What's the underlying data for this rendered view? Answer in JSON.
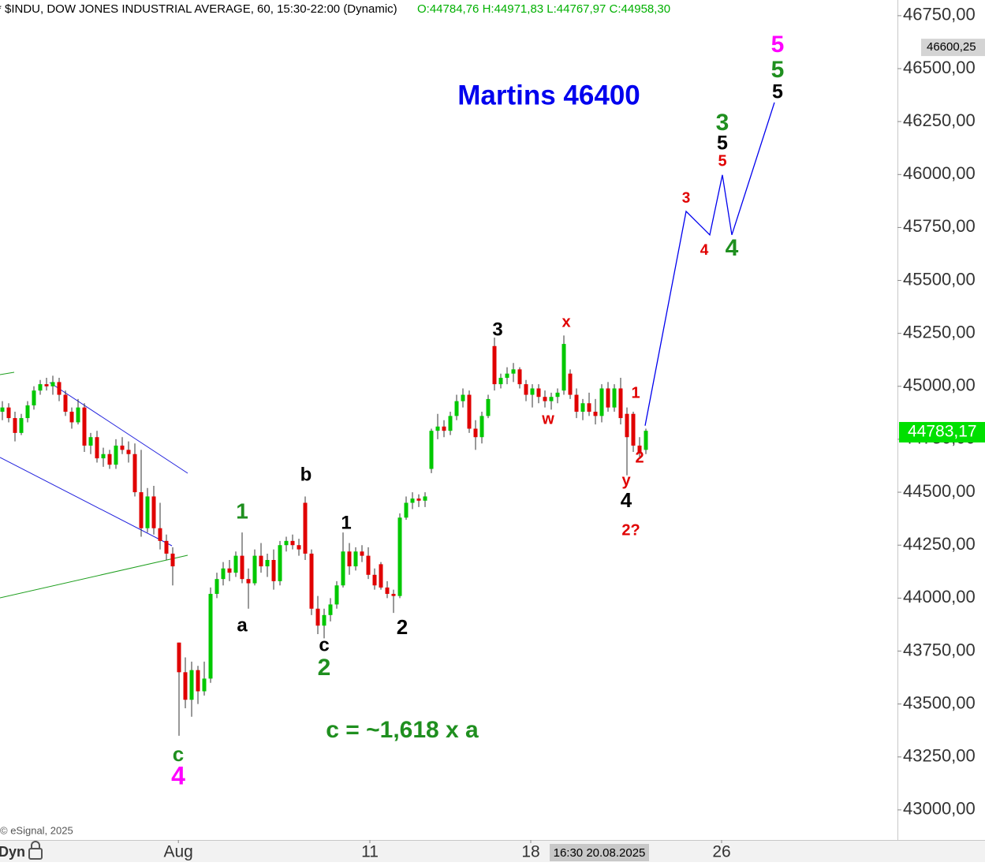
{
  "chart_data": {
    "type": "candlestick",
    "title": "* $INDU, DOW JONES INDUSTRIAL AVERAGE, 60, 15:30-22:00 (Dynamic)",
    "subtitle": "O:44784,76 H:44971,83 L:44767,97 C:44958,30",
    "up_color": "#00c800",
    "down_color": "#e00000",
    "ohlc": [
      [
        44880,
        44930,
        44840,
        44900
      ],
      [
        44900,
        44920,
        44830,
        44850
      ],
      [
        44850,
        44880,
        44740,
        44780
      ],
      [
        44780,
        44870,
        44770,
        44850
      ],
      [
        44850,
        44930,
        44830,
        44910
      ],
      [
        44910,
        45000,
        44890,
        44980
      ],
      [
        44980,
        45030,
        44960,
        45010
      ],
      [
        45010,
        45040,
        44980,
        45000
      ],
      [
        45000,
        45050,
        44960,
        45020
      ],
      [
        45020,
        45040,
        44930,
        44960
      ],
      [
        44960,
        44980,
        44860,
        44880
      ],
      [
        44880,
        44900,
        44800,
        44830
      ],
      [
        44830,
        44940,
        44820,
        44900
      ],
      [
        44900,
        44920,
        44690,
        44720
      ],
      [
        44720,
        44780,
        44680,
        44760
      ],
      [
        44760,
        44790,
        44640,
        44660
      ],
      [
        44660,
        44710,
        44620,
        44680
      ],
      [
        44680,
        44700,
        44610,
        44630
      ],
      [
        44630,
        44750,
        44610,
        44720
      ],
      [
        44720,
        44760,
        44680,
        44700
      ],
      [
        44700,
        44740,
        44640,
        44680
      ],
      [
        44680,
        44730,
        44480,
        44500
      ],
      [
        44500,
        44700,
        44290,
        44330
      ],
      [
        44330,
        44520,
        44310,
        44480
      ],
      [
        44480,
        44530,
        44300,
        44330
      ],
      [
        44330,
        44450,
        44230,
        44270
      ],
      [
        44270,
        44300,
        44180,
        44210
      ],
      [
        44210,
        44240,
        44060,
        44150
      ],
      [
        43790,
        43790,
        43350,
        43650
      ],
      [
        43650,
        43720,
        43480,
        43520
      ],
      [
        43520,
        43700,
        43440,
        43660
      ],
      [
        43660,
        43680,
        43500,
        43560
      ],
      [
        43560,
        43700,
        43540,
        43620
      ],
      [
        43620,
        44050,
        43600,
        44020
      ],
      [
        44020,
        44120,
        44000,
        44090
      ],
      [
        44090,
        44170,
        44060,
        44140
      ],
      [
        44140,
        44180,
        44080,
        44120
      ],
      [
        44120,
        44220,
        44100,
        44200
      ],
      [
        44200,
        44310,
        44070,
        44090
      ],
      [
        44090,
        44140,
        43950,
        44070
      ],
      [
        44070,
        44230,
        44060,
        44200
      ],
      [
        44200,
        44260,
        44120,
        44150
      ],
      [
        44150,
        44210,
        44100,
        44180
      ],
      [
        44180,
        44230,
        44040,
        44080
      ],
      [
        44080,
        44270,
        44060,
        44250
      ],
      [
        44250,
        44290,
        44220,
        44270
      ],
      [
        44270,
        44300,
        44230,
        44250
      ],
      [
        44250,
        44280,
        44200,
        44230
      ],
      [
        44450,
        44480,
        44180,
        44210
      ],
      [
        44210,
        44230,
        43920,
        43950
      ],
      [
        43950,
        44010,
        43830,
        43870
      ],
      [
        43870,
        43950,
        43810,
        43920
      ],
      [
        43920,
        44000,
        43890,
        43970
      ],
      [
        43970,
        44080,
        43950,
        44060
      ],
      [
        44060,
        44310,
        44050,
        44220
      ],
      [
        44220,
        44260,
        44110,
        44150
      ],
      [
        44150,
        44240,
        44130,
        44220
      ],
      [
        44220,
        44250,
        44170,
        44200
      ],
      [
        44200,
        44240,
        44090,
        44110
      ],
      [
        44110,
        44140,
        44040,
        44060
      ],
      [
        44160,
        44170,
        44040,
        44050
      ],
      [
        44050,
        44080,
        44000,
        44020
      ],
      [
        44020,
        44040,
        43930,
        44010
      ],
      [
        44010,
        44400,
        44000,
        44380
      ],
      [
        44380,
        44480,
        44370,
        44450
      ],
      [
        44450,
        44500,
        44420,
        44470
      ],
      [
        44470,
        44490,
        44430,
        44460
      ],
      [
        44460,
        44500,
        44430,
        44480
      ],
      [
        44610,
        44800,
        44590,
        44790
      ],
      [
        44790,
        44870,
        44750,
        44810
      ],
      [
        44810,
        44840,
        44760,
        44790
      ],
      [
        44790,
        44880,
        44770,
        44860
      ],
      [
        44860,
        44960,
        44840,
        44930
      ],
      [
        44930,
        44990,
        44900,
        44960
      ],
      [
        44960,
        44980,
        44780,
        44800
      ],
      [
        44800,
        44840,
        44700,
        44760
      ],
      [
        44760,
        44880,
        44730,
        44860
      ],
      [
        44860,
        44960,
        44850,
        44940
      ],
      [
        45190,
        45230,
        44980,
        45010
      ],
      [
        45010,
        45060,
        44990,
        45040
      ],
      [
        45040,
        45090,
        45010,
        45060
      ],
      [
        45060,
        45110,
        45020,
        45080
      ],
      [
        45080,
        45090,
        44990,
        45010
      ],
      [
        45010,
        45030,
        44930,
        44960
      ],
      [
        44960,
        45010,
        44900,
        44990
      ],
      [
        44990,
        45010,
        44920,
        44950
      ],
      [
        44950,
        44980,
        44900,
        44930
      ],
      [
        44930,
        44970,
        44890,
        44950
      ],
      [
        44950,
        44990,
        44920,
        44970
      ],
      [
        44980,
        45240,
        44960,
        45200
      ],
      [
        45060,
        45080,
        44940,
        44960
      ],
      [
        44960,
        44990,
        44850,
        44880
      ],
      [
        44880,
        44940,
        44840,
        44920
      ],
      [
        44920,
        44970,
        44860,
        44880
      ],
      [
        44880,
        44940,
        44820,
        44860
      ],
      [
        44860,
        45010,
        44830,
        44990
      ],
      [
        44990,
        45020,
        44880,
        44900
      ],
      [
        44900,
        45010,
        44880,
        44990
      ],
      [
        44990,
        45040,
        44820,
        44850
      ],
      [
        44870,
        44900,
        44580,
        44760
      ],
      [
        44870,
        44880,
        44690,
        44720
      ],
      [
        44720,
        44760,
        44660,
        44690
      ],
      [
        44700,
        44800,
        44680,
        44790
      ]
    ],
    "projection": {
      "color": "#0000ee",
      "x": [
        101.875,
        108.375,
        112.125,
        114.125,
        115.625,
        122.375
      ],
      "values": [
        44814,
        45826,
        45715,
        45998,
        45715,
        46340
      ]
    },
    "xlim": [
      -0.375,
      141.875
    ],
    "xticks": [
      {
        "value": 27.9,
        "label": "Aug"
      },
      {
        "value": 58.25,
        "label": "11"
      },
      {
        "value": 83.75,
        "label": "18"
      },
      {
        "value": 114,
        "label": "26"
      }
    ],
    "ylim": [
      42858,
      46824
    ],
    "yticks": [
      {
        "value": 43000,
        "label": "43000,00"
      },
      {
        "value": 43250,
        "label": "43250,00"
      },
      {
        "value": 43500,
        "label": "43500,00"
      },
      {
        "value": 43750,
        "label": "43750,00"
      },
      {
        "value": 44000,
        "label": "44000,00"
      },
      {
        "value": 44250,
        "label": "44250,00"
      },
      {
        "value": 44500,
        "label": "44500,00"
      },
      {
        "value": 44750,
        "label": "44750,00"
      },
      {
        "value": 45000,
        "label": "45000,00"
      },
      {
        "value": 45250,
        "label": "45250,00"
      },
      {
        "value": 45500,
        "label": "45500,00"
      },
      {
        "value": 45750,
        "label": "45750,00"
      },
      {
        "value": 46000,
        "label": "46000,00"
      },
      {
        "value": 46250,
        "label": "46250,00"
      },
      {
        "value": 46500,
        "label": "46500,00"
      },
      {
        "value": 46750,
        "label": "46750,00"
      }
    ],
    "last_price": {
      "value": 44783.17,
      "label": "44783,17"
    },
    "marker_price": {
      "value": 46600.25,
      "label": "46600,25"
    },
    "cursor_time": "16:30 20.08.2025",
    "copyright": "© eSignal, 2025",
    "mode": "Dyn",
    "annotations": [
      {
        "text": "Martins 46400",
        "color": "#0000ee"
      },
      {
        "text": "c = ~1,618 x a",
        "color": "#1f8f1f"
      },
      {
        "text": "5",
        "color": "#ff00ff"
      },
      {
        "text": "5",
        "color": "#1f8f1f"
      },
      {
        "text": "5",
        "color": "#000000"
      },
      {
        "text": "3",
        "color": "#1f8f1f"
      },
      {
        "text": "5",
        "color": "#000000"
      },
      {
        "text": "5",
        "color": "#e00000"
      },
      {
        "text": "3",
        "color": "#e00000"
      },
      {
        "text": "4",
        "color": "#e00000"
      },
      {
        "text": "4",
        "color": "#1f8f1f"
      },
      {
        "text": "x",
        "color": "#e00000"
      },
      {
        "text": "w",
        "color": "#e00000"
      },
      {
        "text": "1",
        "color": "#e00000"
      },
      {
        "text": "2",
        "color": "#e00000"
      },
      {
        "text": "y",
        "color": "#e00000"
      },
      {
        "text": "4",
        "color": "#000000"
      },
      {
        "text": "2?",
        "color": "#e00000"
      },
      {
        "text": "3",
        "color": "#000000"
      },
      {
        "text": "b",
        "color": "#000000"
      },
      {
        "text": "1",
        "color": "#000000"
      },
      {
        "text": "1",
        "color": "#1f8f1f"
      },
      {
        "text": "a",
        "color": "#000000"
      },
      {
        "text": "c",
        "color": "#000000"
      },
      {
        "text": "2",
        "color": "#1f8f1f"
      },
      {
        "text": "2",
        "color": "#000000"
      },
      {
        "text": "c",
        "color": "#1f8f1f"
      },
      {
        "text": "4",
        "color": "#ff00ff"
      }
    ]
  }
}
